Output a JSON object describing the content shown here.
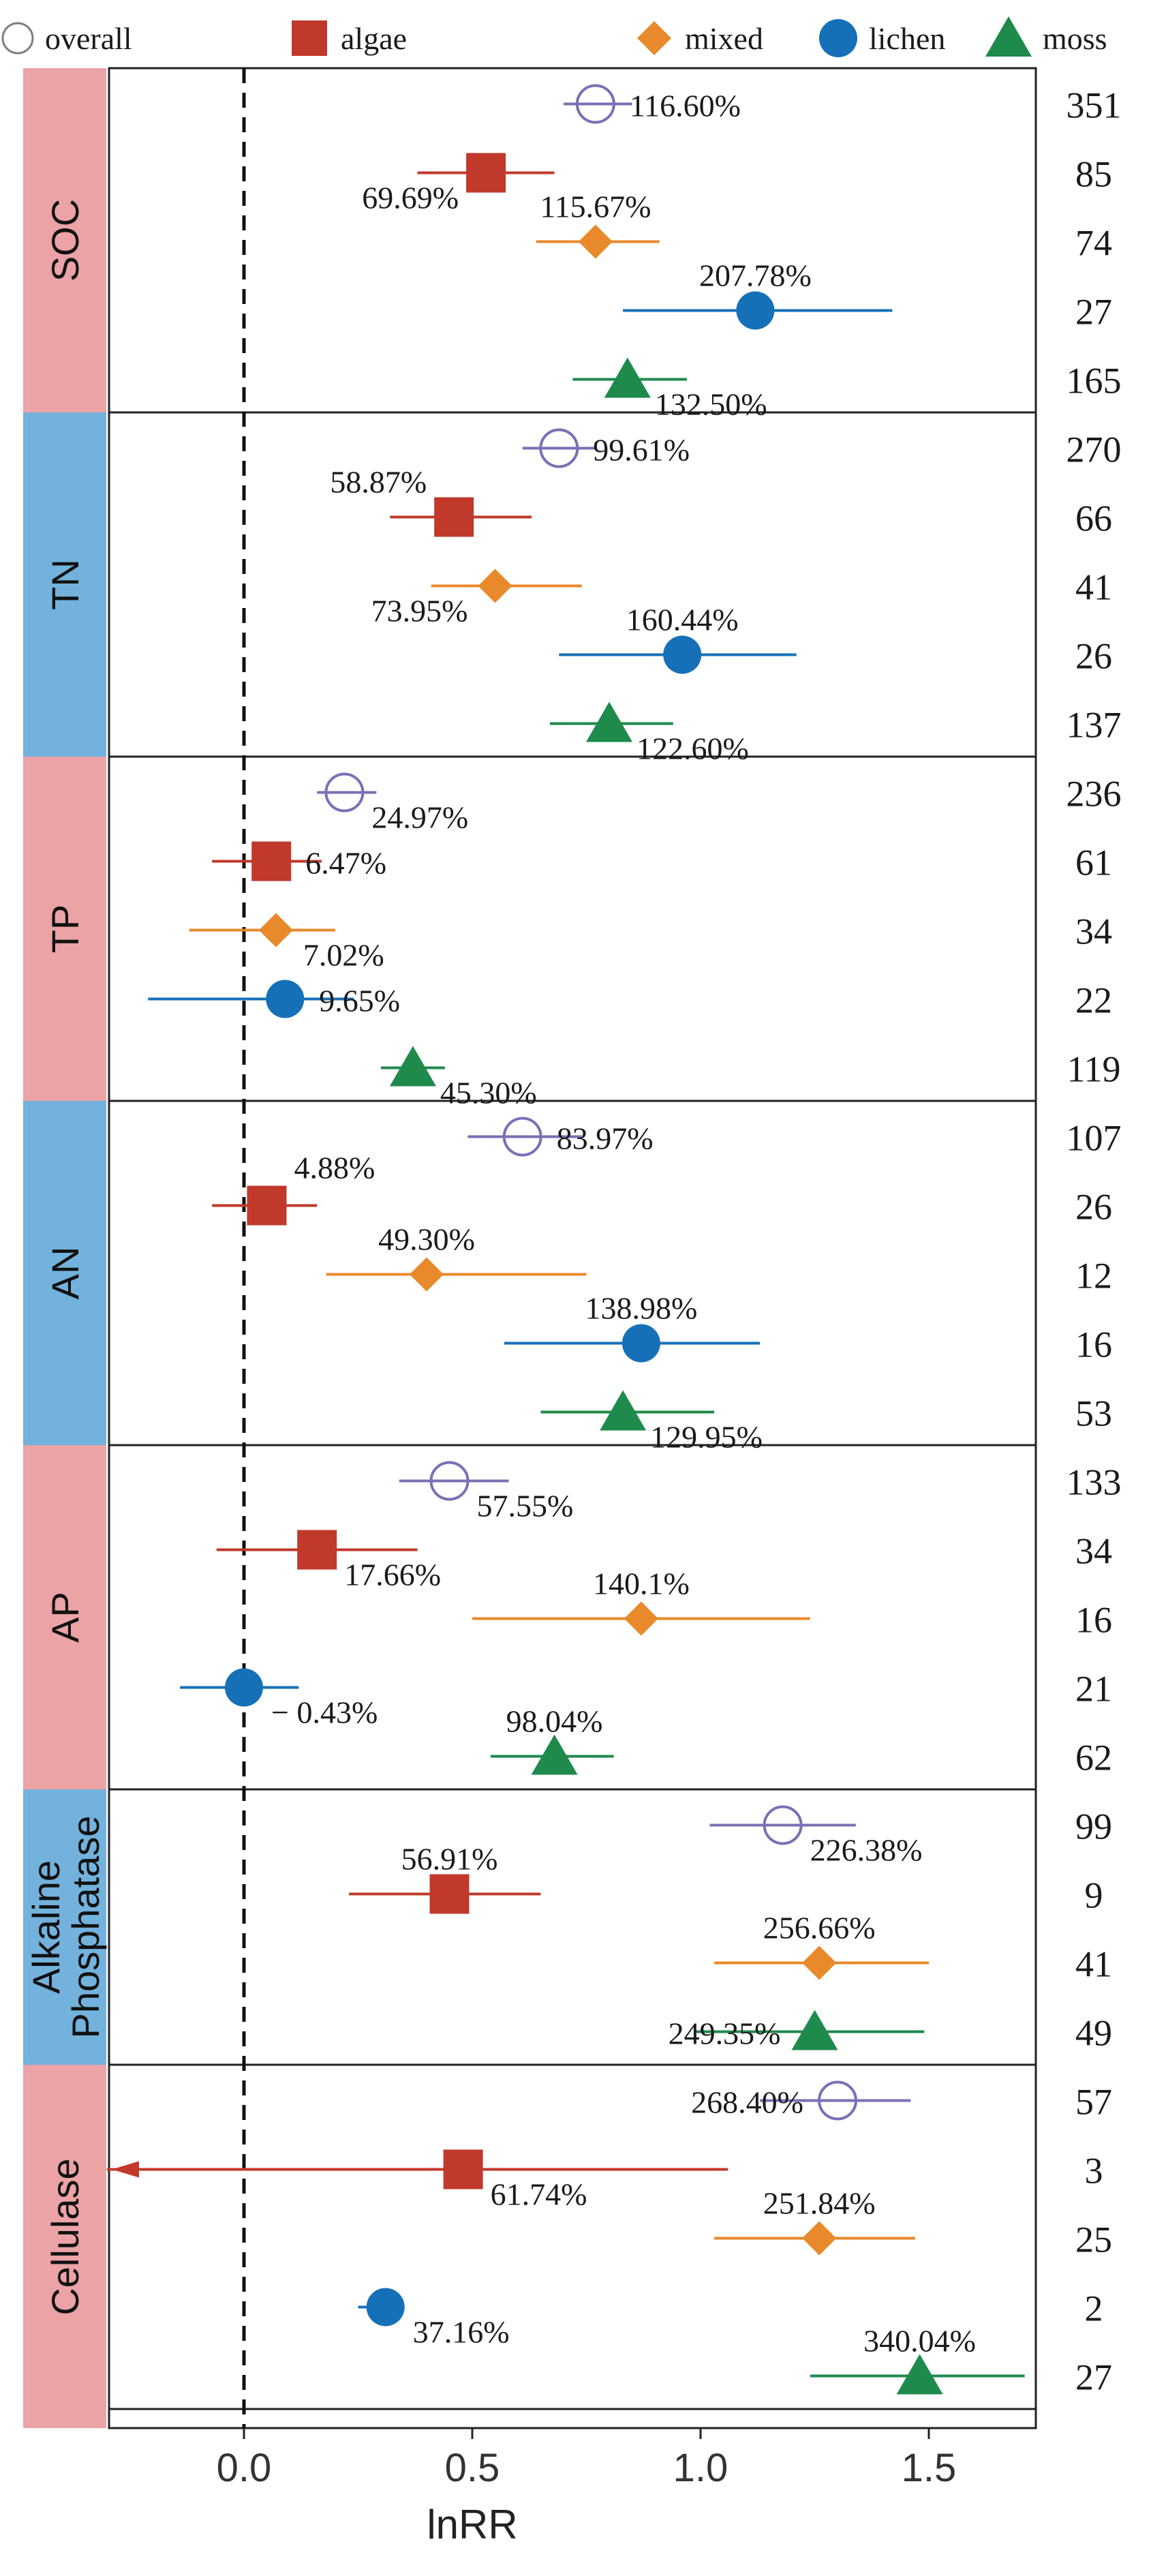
{
  "chart_data": {
    "type": "forest",
    "xlabel": "lnRR",
    "xlim": [
      -0.3,
      1.75
    ],
    "x_ticks": [
      {
        "value": 0.0,
        "label": "0.0"
      },
      {
        "value": 0.5,
        "label": "0.5"
      },
      {
        "value": 1.0,
        "label": "1.0"
      },
      {
        "value": 1.5,
        "label": "1.5"
      }
    ],
    "reference_line": 0,
    "legend": [
      {
        "key": "overall",
        "label": "overall",
        "shape": "open-circle",
        "color": "#7b6fb5"
      },
      {
        "key": "algae",
        "label": "algae",
        "shape": "square",
        "color": "#c0392b"
      },
      {
        "key": "mixed",
        "label": "mixed",
        "shape": "diamond",
        "color": "#e8892b"
      },
      {
        "key": "lichen",
        "label": "lichen",
        "shape": "circle",
        "color": "#1670b8"
      },
      {
        "key": "moss",
        "label": "moss",
        "shape": "triangle",
        "color": "#1e8a4c"
      }
    ],
    "panels": [
      {
        "label": "SOC",
        "strip_color": "#eba3a6",
        "rows": [
          {
            "group": "overall",
            "n": "351",
            "est": 0.77,
            "lo": 0.7,
            "hi": 0.85,
            "label": "116.60%",
            "label_pos": "right"
          },
          {
            "group": "algae",
            "n": "85",
            "est": 0.53,
            "lo": 0.38,
            "hi": 0.68,
            "label": "69.69%",
            "label_pos": "below-left"
          },
          {
            "group": "mixed",
            "n": "74",
            "est": 0.77,
            "lo": 0.64,
            "hi": 0.91,
            "label": "115.67%",
            "label_pos": "above"
          },
          {
            "group": "lichen",
            "n": "27",
            "est": 1.12,
            "lo": 0.83,
            "hi": 1.42,
            "label": "207.78%",
            "label_pos": "above"
          },
          {
            "group": "moss",
            "n": "165",
            "est": 0.84,
            "lo": 0.72,
            "hi": 0.97,
            "label": "132.50%",
            "label_pos": "below-right"
          }
        ]
      },
      {
        "label": "TN",
        "strip_color": "#72b2dc",
        "rows": [
          {
            "group": "overall",
            "n": "270",
            "est": 0.69,
            "lo": 0.61,
            "hi": 0.77,
            "label": "99.61%",
            "label_pos": "right"
          },
          {
            "group": "algae",
            "n": "66",
            "est": 0.46,
            "lo": 0.32,
            "hi": 0.63,
            "label": "58.87%",
            "label_pos": "above-left"
          },
          {
            "group": "mixed",
            "n": "41",
            "est": 0.55,
            "lo": 0.41,
            "hi": 0.74,
            "label": "73.95%",
            "label_pos": "below-left"
          },
          {
            "group": "lichen",
            "n": "26",
            "est": 0.96,
            "lo": 0.69,
            "hi": 1.21,
            "label": "160.44%",
            "label_pos": "above"
          },
          {
            "group": "moss",
            "n": "137",
            "est": 0.8,
            "lo": 0.67,
            "hi": 0.94,
            "label": "122.60%",
            "label_pos": "below-right"
          }
        ]
      },
      {
        "label": "TP",
        "strip_color": "#eba3a6",
        "rows": [
          {
            "group": "overall",
            "n": "236",
            "est": 0.22,
            "lo": 0.16,
            "hi": 0.29,
            "label": "24.97%",
            "label_pos": "below-right"
          },
          {
            "group": "algae",
            "n": "61",
            "est": 0.06,
            "lo": -0.07,
            "hi": 0.17,
            "label": "6.47%",
            "label_pos": "right"
          },
          {
            "group": "mixed",
            "n": "34",
            "est": 0.07,
            "lo": -0.12,
            "hi": 0.2,
            "label": "7.02%",
            "label_pos": "below-right"
          },
          {
            "group": "lichen",
            "n": "22",
            "est": 0.09,
            "lo": -0.21,
            "hi": 0.24,
            "label": "9.65%",
            "label_pos": "right"
          },
          {
            "group": "moss",
            "n": "119",
            "est": 0.37,
            "lo": 0.3,
            "hi": 0.44,
            "label": "45.30%",
            "label_pos": "below-right"
          }
        ]
      },
      {
        "label": "AN",
        "strip_color": "#72b2dc",
        "rows": [
          {
            "group": "overall",
            "n": "107",
            "est": 0.61,
            "lo": 0.49,
            "hi": 0.74,
            "label": "83.97%",
            "label_pos": "right"
          },
          {
            "group": "algae",
            "n": "26",
            "est": 0.05,
            "lo": -0.07,
            "hi": 0.16,
            "label": "4.88%",
            "label_pos": "above-right"
          },
          {
            "group": "mixed",
            "n": "12",
            "est": 0.4,
            "lo": 0.18,
            "hi": 0.75,
            "label": "49.30%",
            "label_pos": "above"
          },
          {
            "group": "lichen",
            "n": "16",
            "est": 0.87,
            "lo": 0.57,
            "hi": 1.13,
            "label": "138.98%",
            "label_pos": "above"
          },
          {
            "group": "moss",
            "n": "53",
            "est": 0.83,
            "lo": 0.65,
            "hi": 1.03,
            "label": "129.95%",
            "label_pos": "below-right"
          }
        ]
      },
      {
        "label": "AP",
        "strip_color": "#eba3a6",
        "rows": [
          {
            "group": "overall",
            "n": "133",
            "est": 0.45,
            "lo": 0.34,
            "hi": 0.58,
            "label": "57.55%",
            "label_pos": "below-right"
          },
          {
            "group": "algae",
            "n": "34",
            "est": 0.16,
            "lo": -0.06,
            "hi": 0.38,
            "label": "17.66%",
            "label_pos": "below-right"
          },
          {
            "group": "mixed",
            "n": "16",
            "est": 0.87,
            "lo": 0.5,
            "hi": 1.24,
            "label": "140.1%",
            "label_pos": "above"
          },
          {
            "group": "lichen",
            "n": "21",
            "est": 0.0,
            "lo": -0.14,
            "hi": 0.12,
            "label": "− 0.43%",
            "label_pos": "below-right"
          },
          {
            "group": "moss",
            "n": "62",
            "est": 0.68,
            "lo": 0.54,
            "hi": 0.81,
            "label": "98.04%",
            "label_pos": "above"
          }
        ]
      },
      {
        "label": "Alkaline Phosphatase",
        "label_lines": [
          "Alkaline",
          "Phosphatase"
        ],
        "strip_color": "#72b2dc",
        "rows": [
          {
            "group": "overall",
            "n": "99",
            "est": 1.18,
            "lo": 1.02,
            "hi": 1.34,
            "label": "226.38%",
            "label_pos": "below-right"
          },
          {
            "group": "algae",
            "n": "9",
            "est": 0.45,
            "lo": 0.23,
            "hi": 0.65,
            "label": "56.91%",
            "label_pos": "above"
          },
          {
            "group": "mixed",
            "n": "41",
            "est": 1.26,
            "lo": 1.03,
            "hi": 1.5,
            "label": "256.66%",
            "label_pos": "above"
          },
          {
            "group": "moss",
            "n": "49",
            "est": 1.25,
            "lo": 0.99,
            "hi": 1.49,
            "label": "249.35%",
            "label_pos": "left"
          }
        ]
      },
      {
        "label": "Cellulase",
        "strip_color": "#eba3a6",
        "rows": [
          {
            "group": "overall",
            "n": "57",
            "est": 1.3,
            "lo": 1.13,
            "hi": 1.46,
            "label": "268.40%",
            "label_pos": "left"
          },
          {
            "group": "algae",
            "n": "3",
            "est": 0.48,
            "lo": -0.3,
            "hi": 1.06,
            "label": "61.74%",
            "label_pos": "below-right",
            "lo_truncated": true
          },
          {
            "group": "mixed",
            "n": "25",
            "est": 1.26,
            "lo": 1.03,
            "hi": 1.47,
            "label": "251.84%",
            "label_pos": "above"
          },
          {
            "group": "lichen",
            "n": "2",
            "est": 0.31,
            "lo": 0.25,
            "hi": 0.35,
            "label": "37.16%",
            "label_pos": "below-right"
          },
          {
            "group": "moss",
            "n": "27",
            "est": 1.48,
            "lo": 1.24,
            "hi": 1.71,
            "label": "340.04%",
            "label_pos": "above"
          }
        ]
      }
    ]
  }
}
